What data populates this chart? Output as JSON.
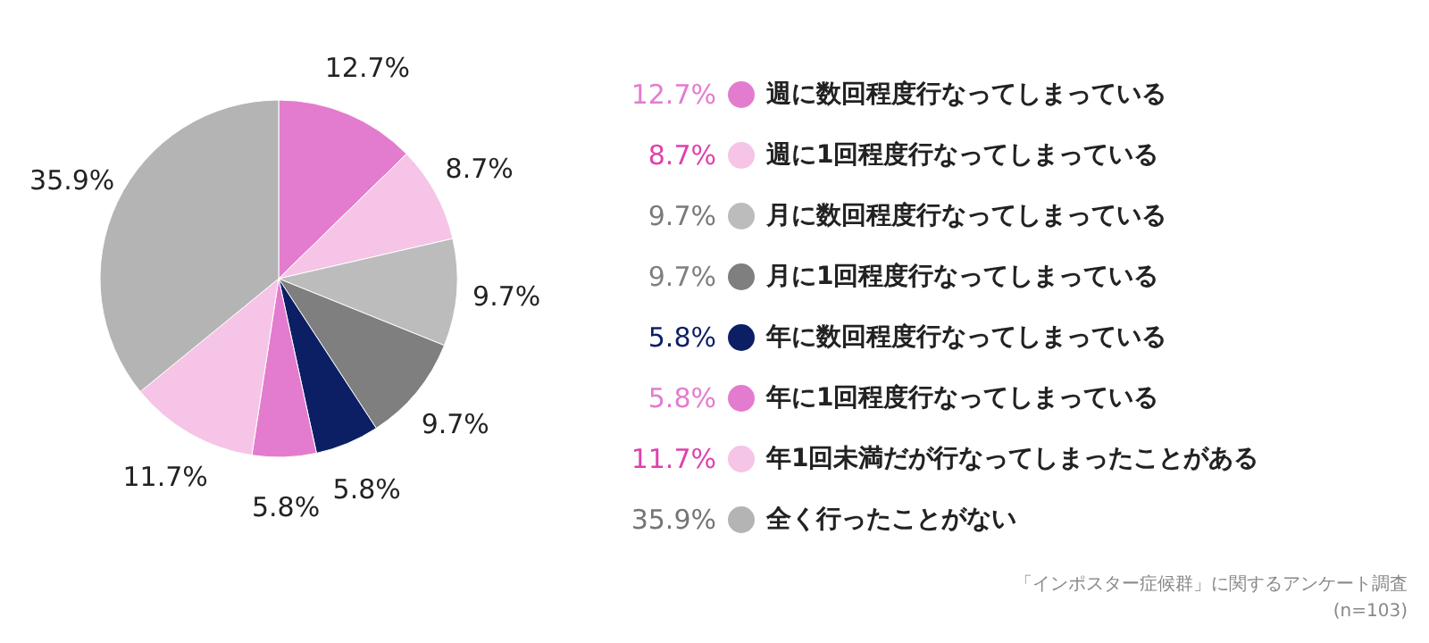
{
  "chart_data": {
    "type": "pie",
    "categories": [
      "週に数回程度行なってしまっている",
      "週に1回程度行なってしまっている",
      "月に数回程度行なってしまっている",
      "月に1回程度行なってしまっている",
      "年に数回程度行なってしまっている",
      "年に1回程度行なってしまっている",
      "年1回未満だが行なってしまったことがある",
      "全く行ったことがない"
    ],
    "values": [
      12.7,
      8.7,
      9.7,
      9.7,
      5.8,
      5.8,
      11.7,
      35.9
    ],
    "value_labels": [
      "12.7%",
      "8.7%",
      "9.7%",
      "9.7%",
      "5.8%",
      "5.8%",
      "11.7%",
      "35.9%"
    ],
    "colors": [
      "#e37ccf",
      "#f5c4e6",
      "#bcbcbd",
      "#7f7f80",
      "#0d1f64",
      "#e37ccf",
      "#f5c4e6",
      "#b4b4b5"
    ],
    "legend": "right",
    "annotations": [
      "「インポスター症候群」に関するアンケート調査",
      "(n=103)"
    ]
  }
}
